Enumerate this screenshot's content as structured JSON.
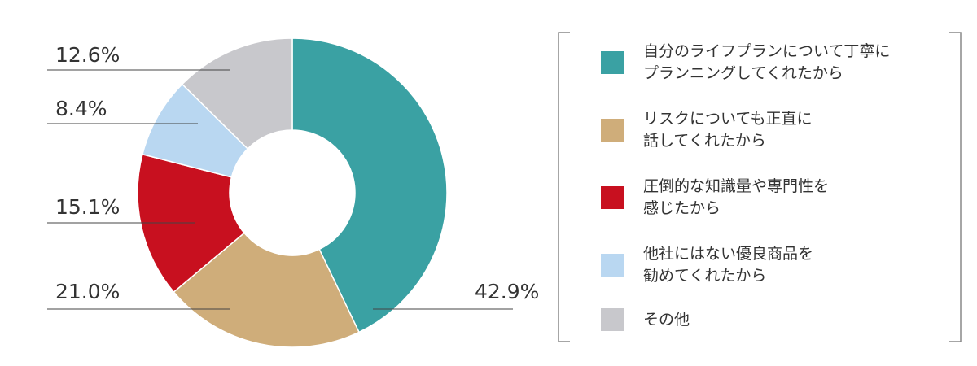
{
  "chart_data": {
    "type": "donut",
    "categories": [
      "自分のライフプランについて丁寧に\nプランニングしてくれたから",
      "リスクについても正直に\n話してくれたから",
      "圧倒的な知識量や専門性を\n感じたから",
      "他社にはない優良商品を\n勧めてくれたから",
      "その他"
    ],
    "values": [
      42.9,
      21.0,
      15.1,
      8.4,
      12.6
    ],
    "value_labels": [
      "42.9%",
      "21.0%",
      "15.1%",
      "8.4%",
      "12.6%"
    ],
    "colors": [
      "#3aa1a3",
      "#cfad7a",
      "#c8101f",
      "#b9d7f1",
      "#c8c8cc"
    ]
  }
}
